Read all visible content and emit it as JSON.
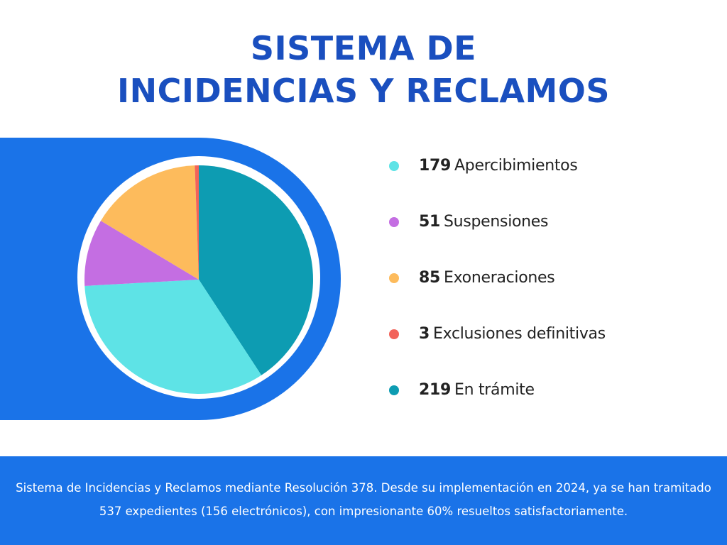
{
  "title": {
    "line1": "SISTEMA DE",
    "line2": "INCIDENCIAS Y RECLAMOS"
  },
  "colors": {
    "title": "#1a4fbf",
    "band": "#1a73e8"
  },
  "chart_data": {
    "type": "pie",
    "title": "",
    "slices": [
      {
        "value": 179,
        "label": "Apercibimientos",
        "color": "#5ee3e6"
      },
      {
        "value": 51,
        "label": "Suspensiones",
        "color": "#c46ee2"
      },
      {
        "value": 85,
        "label": "Exoneraciones",
        "color": "#fdbb5c"
      },
      {
        "value": 3,
        "label": "Exclusiones definitivas",
        "color": "#f2635a"
      },
      {
        "value": 219,
        "label": "En trámite",
        "color": "#0d9cb2"
      }
    ],
    "legend_position": "right"
  },
  "footer": {
    "text": "Sistema de Incidencias y Reclamos mediante Resolución 378. Desde su implementación en 2024, ya se han tramitado 537 expedientes (156 electrónicos), con impresionante 60% resueltos satisfactoriamente."
  }
}
